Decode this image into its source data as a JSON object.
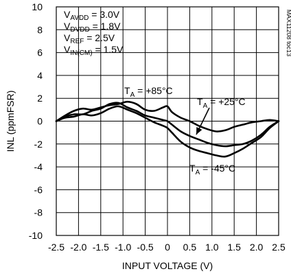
{
  "chart_data": {
    "type": "line",
    "chart_id": "MAX11208 toc13",
    "xlabel": "INPUT VOLTAGE (V)",
    "ylabel": "INL (ppmFSR)",
    "xlim": [
      -2.5,
      2.5
    ],
    "ylim": [
      -10,
      10
    ],
    "x_tick_labels": [
      "-2.5",
      "-2.0",
      "-1.5",
      "-1.0",
      "-0.5",
      "0",
      "0.5",
      "1.0",
      "1.5",
      "2.0",
      "2.5"
    ],
    "y_tick_labels": [
      "10",
      "8",
      "6",
      "4",
      "2",
      "0",
      "-2",
      "-4",
      "-6",
      "-8",
      "-10"
    ],
    "grid": true,
    "conditions": [
      {
        "main": "V",
        "sub": "AVDD",
        "rest": " = 3.0V"
      },
      {
        "main": "V",
        "sub": "DVDD",
        "rest": " = 1.8V"
      },
      {
        "main": "V",
        "sub": "REF",
        "rest": " = 2.5V"
      },
      {
        "main": "V",
        "sub": "IN(CM)",
        "rest": " = 1.5V"
      }
    ],
    "series": [
      {
        "name": "T = +85°C",
        "label_main": "T",
        "label_sub": "A",
        "label_rest": " = +85°C",
        "x": [
          -2.5,
          -2.3,
          -2.1,
          -1.9,
          -1.7,
          -1.5,
          -1.3,
          -1.1,
          -0.9,
          -0.7,
          -0.5,
          -0.3,
          -0.1,
          0.0,
          0.1,
          0.3,
          0.5,
          0.7,
          0.9,
          1.1,
          1.3,
          1.5,
          1.7,
          1.9,
          2.1,
          2.3,
          2.5
        ],
        "y": [
          0.0,
          0.5,
          0.9,
          1.1,
          1.0,
          1.2,
          1.4,
          1.5,
          1.7,
          1.5,
          1.0,
          0.9,
          1.2,
          1.3,
          0.8,
          0.3,
          0.0,
          -0.4,
          -0.7,
          -0.9,
          -0.8,
          -0.5,
          -0.3,
          -0.1,
          0.0,
          0.1,
          0.0
        ]
      },
      {
        "name": "T = +25°C",
        "label_main": "T",
        "label_sub": "A",
        "label_rest": " = +25°C",
        "x": [
          -2.5,
          -2.3,
          -2.1,
          -1.9,
          -1.7,
          -1.5,
          -1.3,
          -1.1,
          -0.9,
          -0.7,
          -0.5,
          -0.3,
          -0.1,
          0.0,
          0.1,
          0.3,
          0.5,
          0.7,
          0.9,
          1.1,
          1.3,
          1.5,
          1.7,
          1.9,
          2.1,
          2.3,
          2.5
        ],
        "y": [
          0.0,
          0.4,
          0.6,
          0.6,
          0.9,
          1.1,
          1.5,
          1.6,
          1.2,
          0.9,
          0.5,
          0.3,
          0.1,
          0.0,
          -0.3,
          -0.9,
          -1.3,
          -1.6,
          -1.9,
          -2.1,
          -2.2,
          -2.1,
          -2.0,
          -1.7,
          -1.2,
          -0.5,
          0.0
        ]
      },
      {
        "name": "T = -45°C",
        "label_main": "T",
        "label_sub": "A",
        "label_rest": " = -45°C",
        "x": [
          -2.5,
          -2.3,
          -2.1,
          -1.9,
          -1.7,
          -1.5,
          -1.3,
          -1.1,
          -0.9,
          -0.7,
          -0.5,
          -0.3,
          -0.1,
          0.0,
          0.1,
          0.3,
          0.5,
          0.7,
          0.9,
          1.1,
          1.3,
          1.5,
          1.7,
          1.9,
          2.1,
          2.3,
          2.5
        ],
        "y": [
          0.0,
          0.3,
          0.4,
          0.6,
          0.5,
          0.7,
          1.1,
          1.3,
          1.0,
          0.7,
          0.3,
          -0.1,
          -0.4,
          -0.6,
          -1.0,
          -1.8,
          -2.3,
          -2.6,
          -2.8,
          -3.0,
          -3.1,
          -2.8,
          -2.4,
          -1.9,
          -1.4,
          -0.6,
          0.0
        ]
      }
    ]
  }
}
